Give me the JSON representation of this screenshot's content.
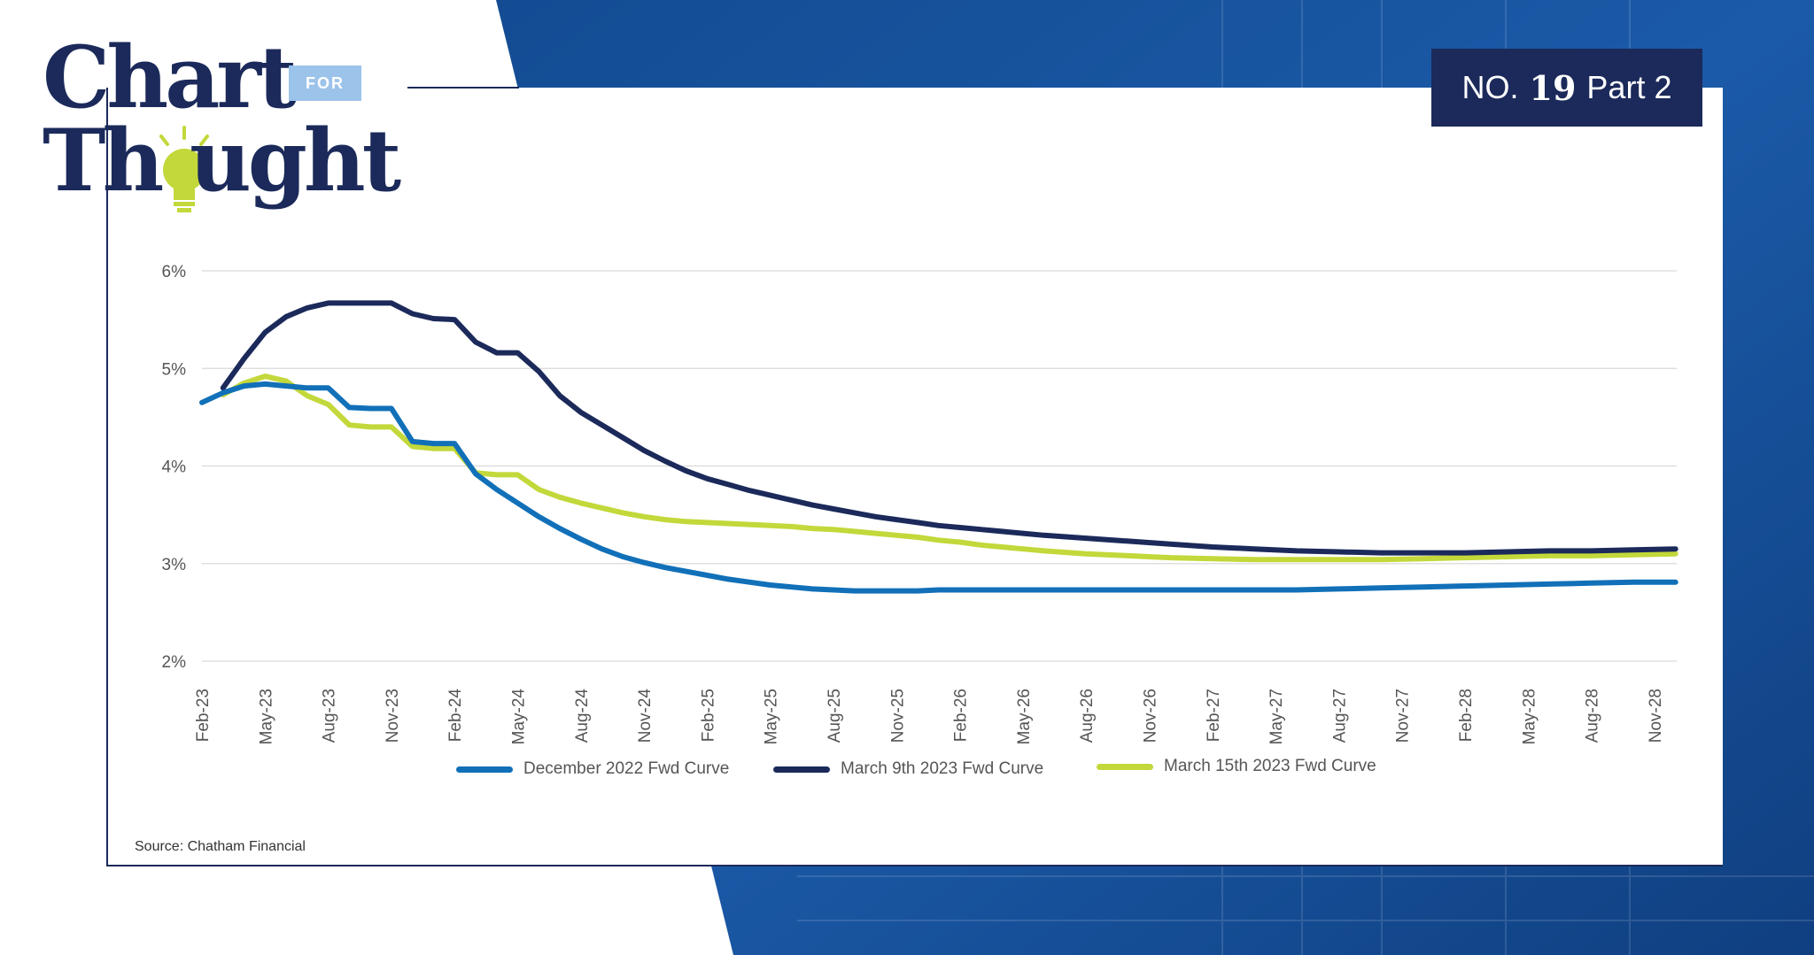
{
  "logo": {
    "word1": "Chart",
    "word2a": "Th",
    "word2b": "ught",
    "for": "FOR"
  },
  "badge": {
    "prefix": "NO.",
    "number": "19",
    "suffix": "Part 2"
  },
  "source": "Source: Chatham Financial",
  "colors": {
    "navy": "#1b2a5a",
    "blue": "#1170b8",
    "lime": "#c3d83a",
    "bg_blue": "#1b5aa8"
  },
  "chart_data": {
    "type": "line",
    "title": "",
    "xlabel": "",
    "ylabel": "",
    "ylim": [
      2,
      6
    ],
    "y_ticks": [
      "2%",
      "3%",
      "4%",
      "5%",
      "6%"
    ],
    "x_tick_labels": [
      "Feb-23",
      "May-23",
      "Aug-23",
      "Nov-23",
      "Feb-24",
      "May-24",
      "Aug-24",
      "Nov-24",
      "Feb-25",
      "May-25",
      "Aug-25",
      "Nov-25",
      "Feb-26",
      "May-26",
      "Aug-26",
      "Nov-26",
      "Feb-27",
      "May-27",
      "Aug-27",
      "Nov-27",
      "Feb-28",
      "May-28",
      "Aug-28",
      "Nov-28"
    ],
    "grid": true,
    "series": [
      {
        "name": "December 2022 Fwd Curve",
        "color": "#1170b8",
        "x": [
          0,
          1,
          2,
          3,
          4,
          5,
          6,
          7,
          8,
          9,
          10,
          11,
          12,
          13,
          14,
          15,
          16,
          17,
          18,
          19,
          20,
          21,
          22,
          23,
          24,
          25,
          26,
          27,
          28,
          29,
          30,
          31,
          32,
          33,
          34,
          35,
          36,
          37,
          38,
          39,
          40,
          42,
          44,
          46,
          48,
          50,
          52,
          54,
          56,
          58,
          60,
          62,
          64,
          66,
          68,
          70
        ],
        "values": [
          4.65,
          4.75,
          4.82,
          4.84,
          4.82,
          4.8,
          4.8,
          4.6,
          4.59,
          4.59,
          4.25,
          4.23,
          4.23,
          3.92,
          3.76,
          3.62,
          3.48,
          3.36,
          3.25,
          3.15,
          3.07,
          3.01,
          2.96,
          2.92,
          2.88,
          2.84,
          2.81,
          2.78,
          2.76,
          2.74,
          2.73,
          2.72,
          2.72,
          2.72,
          2.72,
          2.73,
          2.73,
          2.73,
          2.73,
          2.73,
          2.73,
          2.73,
          2.73,
          2.73,
          2.73,
          2.73,
          2.73,
          2.74,
          2.75,
          2.76,
          2.77,
          2.78,
          2.79,
          2.8,
          2.81,
          2.81
        ]
      },
      {
        "name": "March 9th 2023 Fwd Curve",
        "color": "#1b2a5a",
        "x": [
          1,
          2,
          3,
          4,
          5,
          6,
          7,
          8,
          9,
          10,
          11,
          12,
          13,
          14,
          15,
          16,
          17,
          18,
          19,
          20,
          21,
          22,
          23,
          24,
          25,
          26,
          27,
          28,
          29,
          30,
          31,
          32,
          33,
          34,
          35,
          36,
          37,
          38,
          39,
          40,
          42,
          44,
          46,
          48,
          50,
          52,
          54,
          56,
          58,
          60,
          62,
          64,
          66,
          68,
          70
        ],
        "values": [
          4.8,
          5.1,
          5.37,
          5.53,
          5.62,
          5.67,
          5.67,
          5.67,
          5.67,
          5.56,
          5.51,
          5.5,
          5.27,
          5.16,
          5.16,
          4.97,
          4.72,
          4.55,
          4.42,
          4.29,
          4.16,
          4.05,
          3.95,
          3.87,
          3.81,
          3.75,
          3.7,
          3.65,
          3.6,
          3.56,
          3.52,
          3.48,
          3.45,
          3.42,
          3.39,
          3.37,
          3.35,
          3.33,
          3.31,
          3.29,
          3.26,
          3.23,
          3.2,
          3.17,
          3.15,
          3.13,
          3.12,
          3.11,
          3.11,
          3.11,
          3.12,
          3.13,
          3.13,
          3.14,
          3.15
        ]
      },
      {
        "name": "March 15th 2023 Fwd Curve",
        "color": "#c3d83a",
        "x": [
          1,
          2,
          3,
          4,
          5,
          6,
          7,
          8,
          9,
          10,
          11,
          12,
          13,
          14,
          15,
          16,
          17,
          18,
          19,
          20,
          21,
          22,
          23,
          24,
          25,
          26,
          27,
          28,
          29,
          30,
          31,
          32,
          33,
          34,
          35,
          36,
          37,
          38,
          39,
          40,
          42,
          44,
          46,
          48,
          50,
          52,
          54,
          56,
          58,
          60,
          62,
          64,
          66,
          68,
          70
        ],
        "values": [
          4.73,
          4.85,
          4.92,
          4.87,
          4.72,
          4.63,
          4.42,
          4.4,
          4.4,
          4.2,
          4.18,
          4.18,
          3.93,
          3.91,
          3.91,
          3.76,
          3.68,
          3.62,
          3.57,
          3.52,
          3.48,
          3.45,
          3.43,
          3.42,
          3.41,
          3.4,
          3.39,
          3.38,
          3.36,
          3.35,
          3.33,
          3.31,
          3.29,
          3.27,
          3.24,
          3.22,
          3.19,
          3.17,
          3.15,
          3.13,
          3.1,
          3.08,
          3.06,
          3.05,
          3.04,
          3.04,
          3.04,
          3.04,
          3.05,
          3.06,
          3.07,
          3.08,
          3.08,
          3.09,
          3.1
        ]
      }
    ]
  }
}
